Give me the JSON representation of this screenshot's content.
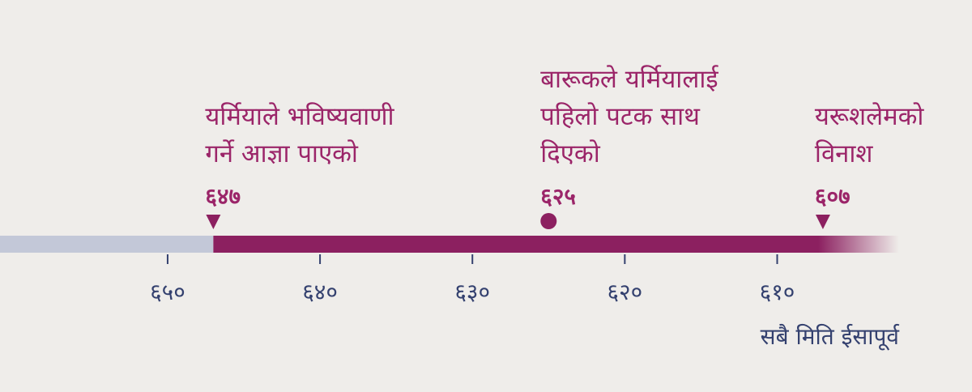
{
  "chart_data": {
    "type": "timeline",
    "x_label": "सबै मिति ईसापूर्व",
    "xlim": [
      661,
      602
    ],
    "xticks": [
      {
        "value": 650,
        "label": "६५०"
      },
      {
        "value": 640,
        "label": "६४०"
      },
      {
        "value": 630,
        "label": "६३०"
      },
      {
        "value": 620,
        "label": "६२०"
      },
      {
        "value": 610,
        "label": "६१०"
      }
    ],
    "events": {
      "values": [
        647,
        625,
        607
      ],
      "value_labels": [
        "६४७",
        "६२५",
        "६०७"
      ],
      "labels": [
        [
          "यर्मियाले भविष्यवाणी",
          "गर्ने आज्ञा पाएको"
        ],
        [
          "बारूकले यर्मियालाई",
          "पहिलो पटक साथ",
          "दिएको"
        ],
        [
          "यरूशलेमको",
          "विनाश"
        ]
      ],
      "markers": [
        "triangle",
        "circle",
        "triangle"
      ]
    },
    "color": "#8c2060",
    "before_color": "#c3c8d8",
    "text_color": "#9b2569",
    "axis_text_color": "#34416f"
  }
}
